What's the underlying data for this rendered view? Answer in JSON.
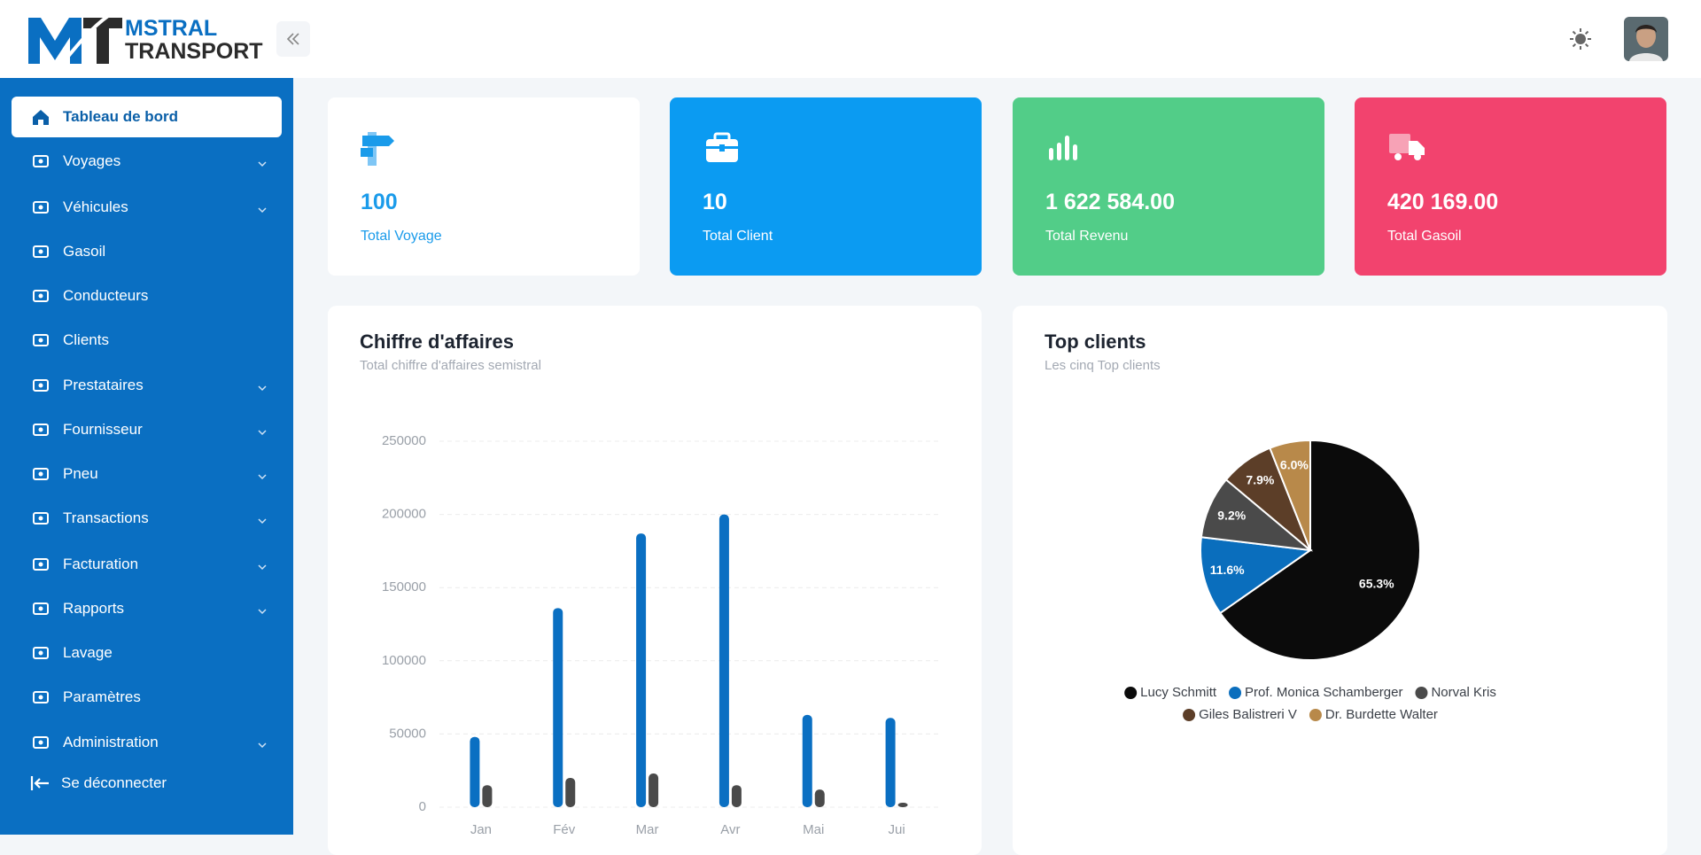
{
  "header": {
    "brand_line1": "MSTRAL",
    "brand_line2": "TRANSPORT"
  },
  "sidebar": {
    "items": [
      {
        "label": "Tableau de bord",
        "active": true
      },
      {
        "label": "Voyages",
        "submenu": true
      },
      {
        "label": "Véhicules",
        "submenu": true
      },
      {
        "label": "Gasoil"
      },
      {
        "label": "Conducteurs"
      },
      {
        "label": "Clients"
      },
      {
        "label": "Prestataires",
        "submenu": true
      },
      {
        "label": "Fournisseur",
        "submenu": true
      },
      {
        "label": "Pneu",
        "submenu": true
      },
      {
        "label": "Transactions",
        "submenu": true
      },
      {
        "label": "Facturation",
        "submenu": true
      },
      {
        "label": "Rapports",
        "submenu": true
      },
      {
        "label": "Lavage"
      },
      {
        "label": "Paramètres"
      },
      {
        "label": "Administration",
        "submenu": true
      }
    ],
    "logout": "Se déconnecter"
  },
  "cards": [
    {
      "value": "100",
      "label": "Total Voyage",
      "color": "#ffffff"
    },
    {
      "value": "10",
      "label": "Total Client",
      "color": "#0b9bf2"
    },
    {
      "value": "1 622 584.00",
      "label": "Total Revenu",
      "color": "#52cd88"
    },
    {
      "value": "420 169.00",
      "label": "Total Gasoil",
      "color": "#f2436e"
    }
  ],
  "chart_data": [
    {
      "type": "bar",
      "title": "Chiffre d'affaires",
      "subtitle": "Total chiffre d'affaires semistral",
      "categories": [
        "Jan",
        "Fév",
        "Mar",
        "Avr",
        "Mai",
        "Jui"
      ],
      "series": [
        {
          "color": "#0a6fc2",
          "values": [
            48000,
            136000,
            187000,
            200000,
            63000,
            61000
          ]
        },
        {
          "color": "#4a4a4a",
          "values": [
            15000,
            20000,
            23000,
            15000,
            12000,
            3000
          ]
        }
      ],
      "ylim": [
        0,
        250000
      ],
      "yticks": [
        0,
        50000,
        100000,
        150000,
        200000,
        250000
      ],
      "grid": true
    },
    {
      "type": "pie",
      "title": "Top clients",
      "subtitle": "Les cinq Top clients",
      "categories": [
        "Lucy Schmitt",
        "Prof. Monica Schamberger",
        "Norval Kris",
        "Giles Balistreri V",
        "Dr. Burdette Walter"
      ],
      "values": [
        65.3,
        11.6,
        9.2,
        7.9,
        6.0
      ],
      "value_labels": [
        "65.3%",
        "11.6%",
        "9.2%",
        "7.9%",
        "6.0%"
      ],
      "colors": [
        "#0b0b0b",
        "#0a6ebd",
        "#4a4a4a",
        "#5c3e28",
        "#b8894a"
      ]
    }
  ]
}
